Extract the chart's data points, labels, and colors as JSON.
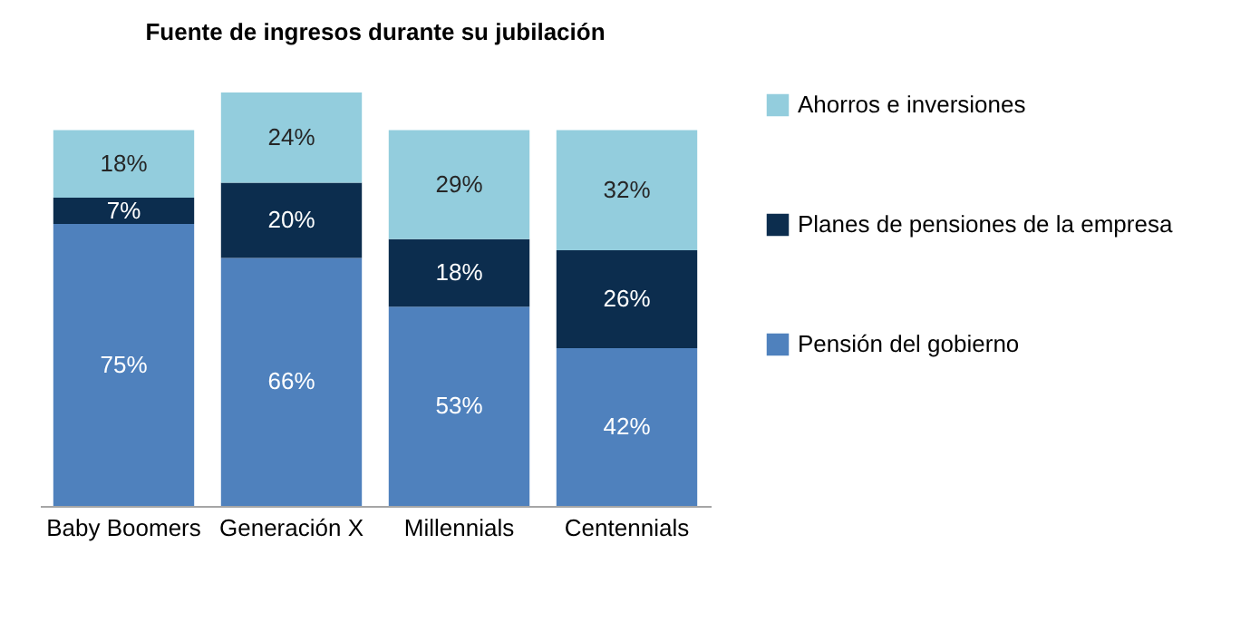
{
  "chart_data": {
    "type": "bar",
    "title": "Fuente de ingresos durante su jubilación",
    "stacked": true,
    "categories": [
      "Baby Boomers",
      "Generación X",
      "Millennials",
      "Centennials"
    ],
    "series": [
      {
        "name": "Pensión del gobierno",
        "color": "#4f81bd",
        "values": [
          75,
          66,
          53,
          42
        ],
        "value_labels": [
          "75%",
          "66%",
          "53%",
          "42%"
        ]
      },
      {
        "name": "Planes de pensiones de la empresa",
        "color": "#0c2d4e",
        "values": [
          7,
          20,
          18,
          26
        ],
        "value_labels": [
          "7%",
          "20%",
          "18%",
          "26%"
        ]
      },
      {
        "name": "Ahorros e inversiones",
        "color": "#93cddd",
        "values": [
          18,
          24,
          29,
          32
        ],
        "value_labels": [
          "18%",
          "24%",
          "29%",
          "32%"
        ]
      }
    ],
    "legend": "right",
    "tick_labels": "x"
  }
}
